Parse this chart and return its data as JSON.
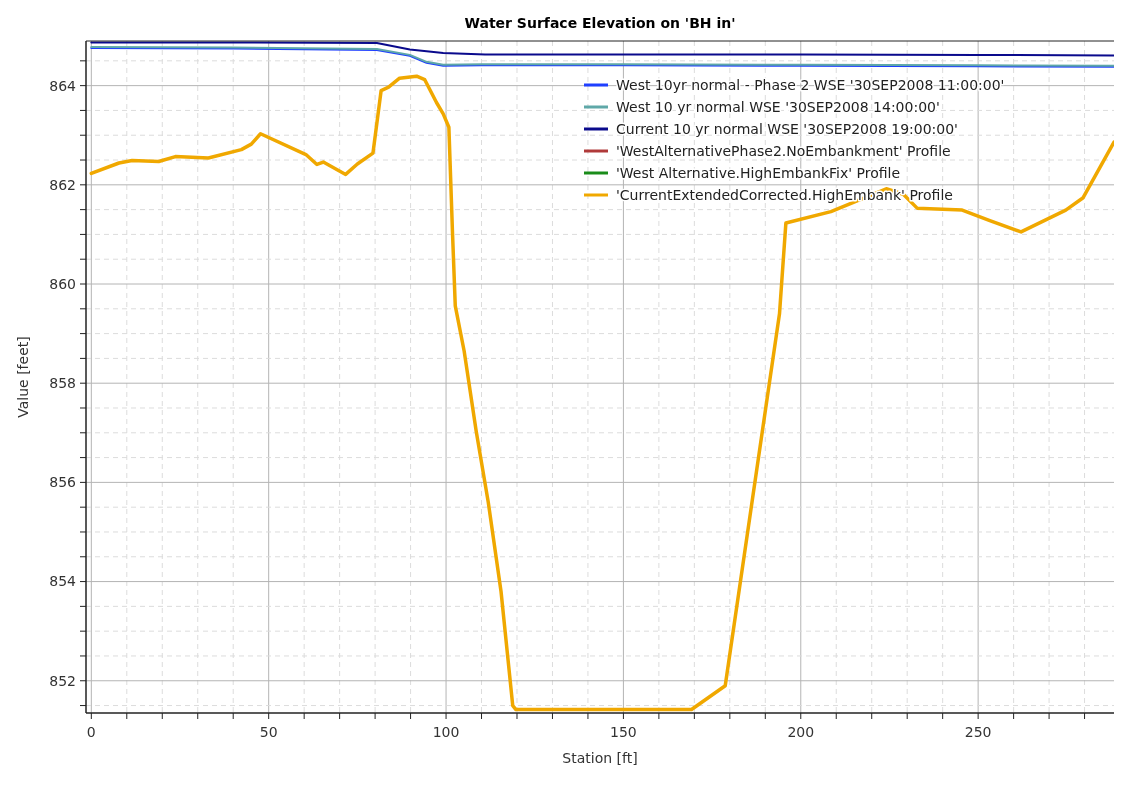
{
  "chart_data": {
    "type": "line",
    "title": "Water Surface Elevation on 'BH in'",
    "xlabel": "Station [ft]",
    "ylabel": "Value [feet]",
    "xlim": [
      -1.5,
      288.3
    ],
    "ylim": [
      851.35,
      864.9
    ],
    "xticks": [
      0,
      {
        "value": 10,
        "label": null
      },
      {
        "value": 20,
        "label": null
      },
      {
        "value": 30,
        "label": null
      },
      {
        "value": 40,
        "label": null
      },
      50,
      {
        "value": 60,
        "label": null
      },
      {
        "value": 70,
        "label": null
      },
      {
        "value": 80,
        "label": null
      },
      {
        "value": 90,
        "label": null
      },
      100,
      {
        "value": 110,
        "label": null
      },
      {
        "value": 120,
        "label": null
      },
      {
        "value": 130,
        "label": null
      },
      {
        "value": 140,
        "label": null
      },
      150,
      {
        "value": 160,
        "label": null
      },
      {
        "value": 170,
        "label": null
      },
      {
        "value": 180,
        "label": null
      },
      {
        "value": 190,
        "label": null
      },
      200,
      {
        "value": 210,
        "label": null
      },
      {
        "value": 220,
        "label": null
      },
      {
        "value": 230,
        "label": null
      },
      {
        "value": 240,
        "label": null
      },
      250,
      {
        "value": 260,
        "label": null
      },
      {
        "value": 270,
        "label": null
      },
      {
        "value": 280,
        "label": null
      }
    ],
    "yticks": [
      {
        "value": 851.5,
        "label": null
      },
      852,
      {
        "value": 852.5,
        "label": null
      },
      {
        "value": 853,
        "label": null
      },
      {
        "value": 853.5,
        "label": null
      },
      854,
      {
        "value": 854.5,
        "label": null
      },
      {
        "value": 855,
        "label": null
      },
      {
        "value": 855.5,
        "label": null
      },
      856,
      {
        "value": 856.5,
        "label": null
      },
      {
        "value": 857,
        "label": null
      },
      {
        "value": 857.5,
        "label": null
      },
      858,
      {
        "value": 858.5,
        "label": null
      },
      {
        "value": 859,
        "label": null
      },
      {
        "value": 859.5,
        "label": null
      },
      860,
      {
        "value": 860.5,
        "label": null
      },
      {
        "value": 861,
        "label": null
      },
      {
        "value": 861.5,
        "label": null
      },
      862,
      {
        "value": 862.5,
        "label": null
      },
      {
        "value": 863,
        "label": null
      },
      {
        "value": 863.5,
        "label": null
      },
      864,
      {
        "value": 864.5,
        "label": null
      }
    ],
    "grid": true,
    "legend": "top right",
    "marker": "none",
    "line_style": "solid",
    "series": [
      {
        "name": "West 10yr normal - Phase 2 WSE '30SEP2008 11:00:00'",
        "color": "#1f3fff",
        "x": [
          0,
          40,
          80.5,
          89.8,
          94.5,
          99.2,
          110,
          150,
          200,
          250,
          288.3
        ],
        "values": [
          864.76,
          864.75,
          864.72,
          864.6,
          864.46,
          864.4,
          864.41,
          864.41,
          864.4,
          864.39,
          864.38
        ]
      },
      {
        "name": "West 10 yr normal WSE '30SEP2008 14:00:00'",
        "color": "#5fa8a8",
        "x": [
          0,
          40,
          80.5,
          89.8,
          94.5,
          99.2,
          110,
          150,
          200,
          250,
          288.3
        ],
        "values": [
          864.78,
          864.77,
          864.74,
          864.62,
          864.48,
          864.42,
          864.43,
          864.43,
          864.42,
          864.41,
          864.4
        ]
      },
      {
        "name": "Current 10 yr normal WSE '30SEP2008 19:00:00'",
        "color": "#0a0a8c",
        "x": [
          0,
          40,
          80.5,
          89.8,
          99.2,
          111,
          150,
          200,
          250,
          288.3
        ],
        "values": [
          864.87,
          864.87,
          864.86,
          864.73,
          864.66,
          864.63,
          864.63,
          864.63,
          864.62,
          864.61
        ]
      },
      {
        "name": "'WestAlternativePhase2.NoEmbankment' Profile",
        "color": "#b03a3a"
      },
      {
        "name": "'West Alternative.HighEmbankFix' Profile",
        "color": "#1a8c1a"
      },
      {
        "name": "'CurrentExtendedCorrected.HighEmbank' Profile",
        "color": "#f0a800",
        "x": [
          0,
          7.8,
          11.5,
          19,
          23.7,
          33,
          42.3,
          45.1,
          47.7,
          60.5,
          63.6,
          65.4,
          71.7,
          75,
          79.4,
          81.7,
          83.8,
          86.9,
          91.7,
          94,
          97.3,
          99.2,
          100.8,
          101.8,
          102.6,
          105.1,
          108.5,
          111.9,
          115.5,
          118.8,
          119.7,
          169.2,
          178.7,
          194,
          195.8,
          208.5,
          224.1,
          228.9,
          232.8,
          245.5,
          253.3,
          262.1,
          274.7,
          279.6,
          288.3
        ],
        "values": [
          862.23,
          862.44,
          862.49,
          862.47,
          862.57,
          862.54,
          862.71,
          862.82,
          863.03,
          862.61,
          862.41,
          862.46,
          862.21,
          862.42,
          862.64,
          863.9,
          863.97,
          864.15,
          864.19,
          864.12,
          863.66,
          863.43,
          863.16,
          861.07,
          859.56,
          858.65,
          857.03,
          855.6,
          853.8,
          851.5,
          851.42,
          851.42,
          851.9,
          859.4,
          861.23,
          861.46,
          861.92,
          861.81,
          861.53,
          861.49,
          861.28,
          861.05,
          861.49,
          861.74,
          862.86
        ]
      }
    ]
  }
}
